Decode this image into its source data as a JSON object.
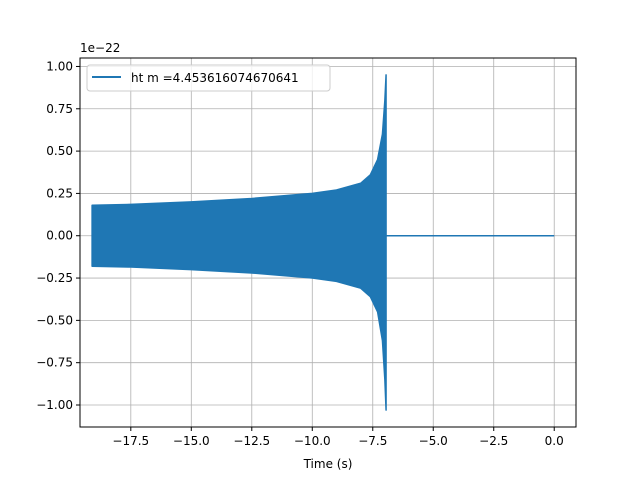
{
  "chart_data": {
    "type": "line",
    "title": "",
    "xlabel": "Time (s)",
    "ylabel": "",
    "y_offset_label": "1e−22",
    "xlim": [
      -19.6,
      0.9
    ],
    "ylim": [
      -1.13,
      1.05
    ],
    "grid": true,
    "legend_placement": "upper-left",
    "x_ticks": [
      -17.5,
      -15.0,
      -12.5,
      -10.0,
      -7.5,
      -5.0,
      -2.5,
      0.0
    ],
    "x_tick_labels": [
      "−17.5",
      "−15.0",
      "−12.5",
      "−10.0",
      "−7.5",
      "−5.0",
      "−2.5",
      "0.0"
    ],
    "y_ticks": [
      1.0,
      0.75,
      0.5,
      0.25,
      0.0,
      -0.25,
      -0.5,
      -0.75,
      -1.0
    ],
    "y_tick_labels": [
      "1.00",
      "0.75",
      "0.50",
      "0.25",
      "0.00",
      "−0.25",
      "−0.50",
      "−0.75",
      "−1.00"
    ],
    "series": [
      {
        "name": "ht m =4.453616074670641",
        "color": "#1f77b4",
        "description_of_values": "oscillating chirp; envelope given as time, upper and lower amplitude",
        "envelope": {
          "t": [
            -19.1,
            -17.5,
            -15.0,
            -12.5,
            -10.0,
            -9.0,
            -8.0,
            -7.6,
            -7.3,
            -7.1,
            -7.0,
            -6.95
          ],
          "upper": [
            0.18,
            0.185,
            0.2,
            0.22,
            0.25,
            0.27,
            0.31,
            0.36,
            0.45,
            0.6,
            0.8,
            0.95
          ],
          "lower": [
            -0.18,
            -0.185,
            -0.2,
            -0.22,
            -0.25,
            -0.27,
            -0.31,
            -0.36,
            -0.45,
            -0.62,
            -0.85,
            -1.03
          ]
        },
        "zero_tail": {
          "t_start": -6.95,
          "t_end": 0.0,
          "value": 0.0
        }
      }
    ]
  }
}
